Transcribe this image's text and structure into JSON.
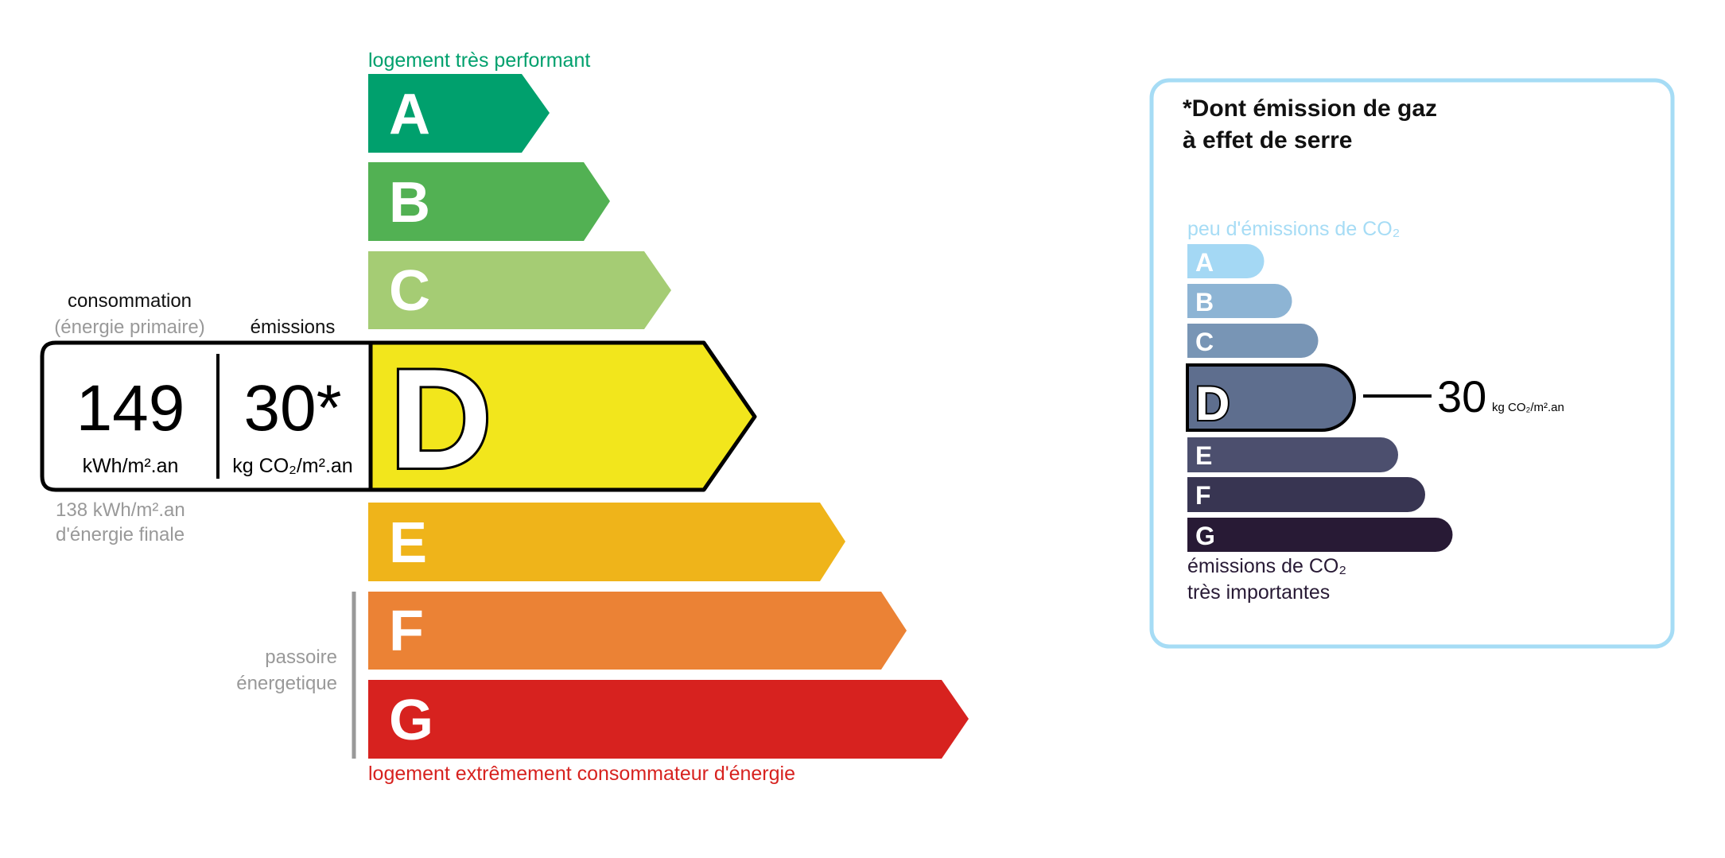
{
  "energy": {
    "top_label": "logement très performant",
    "bottom_label": "logement extrêmement consommateur d'énergie",
    "passoire_line1": "passoire",
    "passoire_line2": "énergetique",
    "consumption_header": "consommation",
    "consumption_subheader": "(énergie primaire)",
    "emissions_header": "émissions",
    "consumption_value": "149",
    "consumption_unit": "kWh/m².an",
    "emissions_value": "30*",
    "emissions_unit": "kg CO₂/m².an",
    "final_energy_line1": "138 kWh/m².an",
    "final_energy_line2": "d'énergie finale",
    "current_class": "D",
    "classes": [
      {
        "letter": "A",
        "color": "#00a06d"
      },
      {
        "letter": "B",
        "color": "#52b153"
      },
      {
        "letter": "C",
        "color": "#a5cc74"
      },
      {
        "letter": "D",
        "color": "#f2e61c"
      },
      {
        "letter": "E",
        "color": "#efb41a"
      },
      {
        "letter": "F",
        "color": "#eb8235"
      },
      {
        "letter": "G",
        "color": "#d7221f"
      }
    ]
  },
  "ges": {
    "title_line1": "*Dont émission de gaz",
    "title_line2": "à effet de serre",
    "top_label": "peu d'émissions de CO₂",
    "bottom_line1": "émissions de CO₂",
    "bottom_line2": "très importantes",
    "value": "30",
    "unit": "kg CO₂/m².an",
    "current_class": "D",
    "border_color": "#a6dcf5",
    "classes": [
      {
        "letter": "A",
        "color": "#a4d8f4"
      },
      {
        "letter": "B",
        "color": "#8db4d4"
      },
      {
        "letter": "C",
        "color": "#7895b5"
      },
      {
        "letter": "D",
        "color": "#5e6e8e"
      },
      {
        "letter": "E",
        "color": "#4c4f6e"
      },
      {
        "letter": "F",
        "color": "#383552"
      },
      {
        "letter": "G",
        "color": "#281a35"
      }
    ]
  }
}
